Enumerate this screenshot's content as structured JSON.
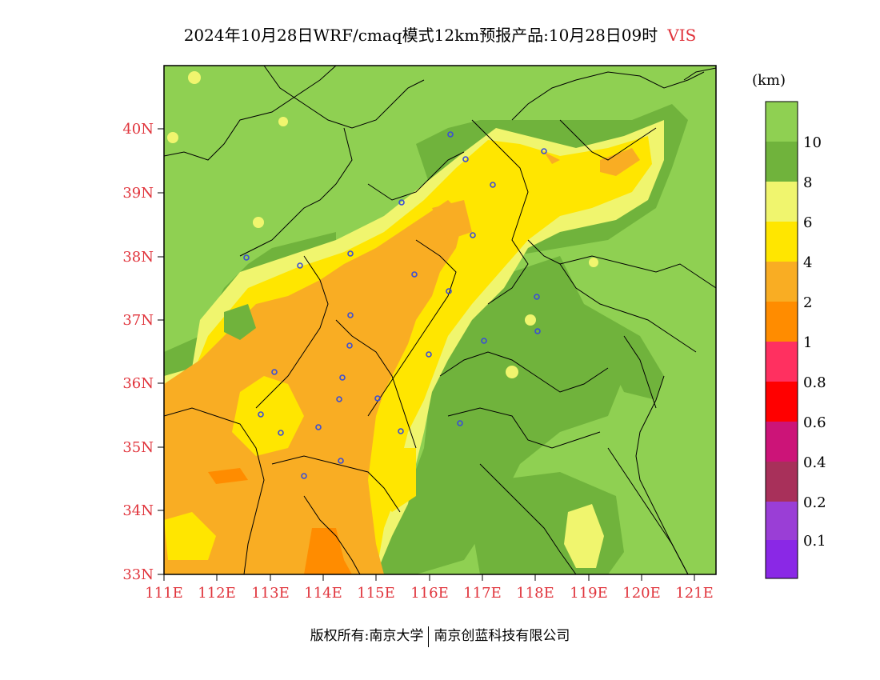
{
  "title": {
    "main": "2024年10月28日WRF/cmaq模式12km预报产品:10月28日09时",
    "variable": "VIS"
  },
  "legend": {
    "unit": "(km)",
    "levels": [
      "10",
      "8",
      "6",
      "4",
      "2",
      "1",
      "0.8",
      "0.6",
      "0.4",
      "0.2",
      "0.1"
    ],
    "colors": [
      "#8fd052",
      "#70b33c",
      "#f0f56e",
      "#ffe600",
      "#f9ad23",
      "#ff8c00",
      "#ff3060",
      "#ff0000",
      "#cc1478",
      "#a8305a",
      "#9a3ed6",
      "#8a28e6"
    ]
  },
  "axes": {
    "x_ticks": [
      "111E",
      "112E",
      "113E",
      "114E",
      "115E",
      "116E",
      "117E",
      "118E",
      "119E",
      "120E",
      "121E"
    ],
    "y_ticks": [
      "33N",
      "34N",
      "35N",
      "36N",
      "37N",
      "38N",
      "39N",
      "40N"
    ],
    "tick_color": "#e0343c"
  },
  "footer": {
    "left": "版权所有:南京大学",
    "right": "南京创蓝科技有限公司"
  }
}
